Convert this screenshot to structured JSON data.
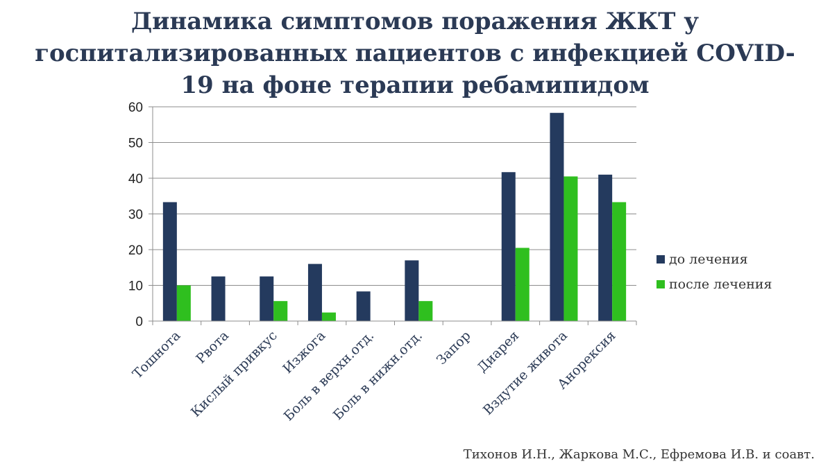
{
  "title_lines": [
    "Динамика симптомов поражения ЖКТ у",
    "госпитализированных пациентов с инфекцией COVID-",
    "19 на фоне терапии ребамипидом"
  ],
  "credit": "Тихонов И.Н., Жаркова М.С., Ефремова И.В. и соавт.",
  "chart_data": {
    "type": "bar",
    "title": "Динамика симптомов поражения ЖКТ у госпитализированных пациентов с инфекцией COVID-19 на фоне терапии ребамипидом",
    "xlabel": "",
    "ylabel": "",
    "ylim": [
      0,
      60
    ],
    "yticks": [
      0,
      10,
      20,
      30,
      40,
      50,
      60
    ],
    "grid": true,
    "legend_position": "right",
    "categories": [
      "Тошнота",
      "Рвота",
      "Кислый привкус",
      "Изжога",
      "Боль в верхн.отд.",
      "Боль в нижн.отд.",
      "Запор",
      "Диарея",
      "Вздутие живота",
      "Анорексия"
    ],
    "series": [
      {
        "name": "до лечения",
        "color": "#243a5e",
        "values": [
          33.3,
          12.5,
          12.5,
          16.0,
          8.3,
          17.0,
          0,
          41.7,
          58.3,
          41.0
        ]
      },
      {
        "name": "после лечения",
        "color": "#2fbf1f",
        "values": [
          10.0,
          0,
          5.6,
          2.4,
          0,
          5.6,
          0,
          20.5,
          40.5,
          33.3
        ]
      }
    ]
  }
}
